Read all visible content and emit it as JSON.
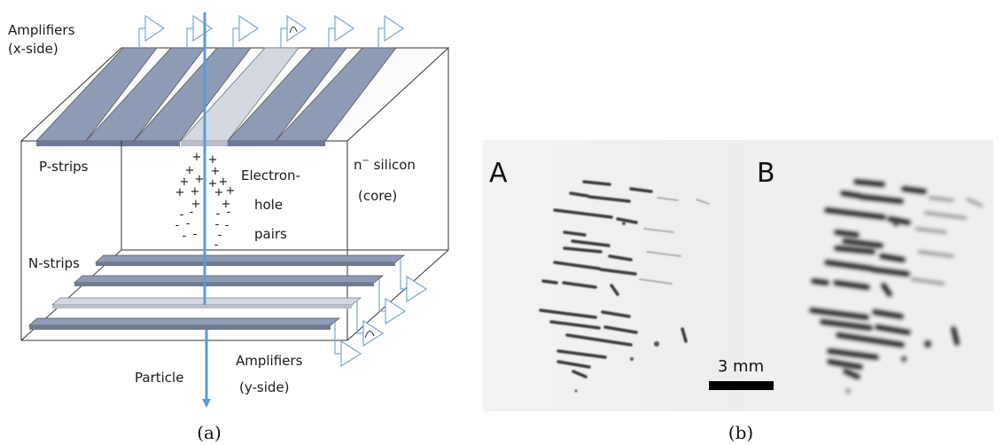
{
  "panel_a": {
    "labels": {
      "amp_x_line1": "Amplifiers",
      "amp_x_line2": "(x-side)",
      "p_strips": "P-strips",
      "n_strips": "N-strips",
      "electron_line1": "Electron-",
      "electron_line2": "hole",
      "electron_line3": "pairs",
      "silicon_prefix": "n",
      "silicon_sup": "−",
      "silicon_rest": " silicon",
      "core": "(core)",
      "particle": "Particle",
      "amp_y_line1": "Amplifiers",
      "amp_y_line2": "(y-side)"
    },
    "colors": {
      "strip": "#8e9bb4",
      "strip_hit": "#d4d8e0",
      "particle": "#5b9bd5",
      "amplifier": "#7aa6d6"
    }
  },
  "panel_b": {
    "label_a": "A",
    "label_b": "B",
    "scale_label": "3 mm"
  },
  "captions": {
    "a": "(a)",
    "b": "(b)"
  }
}
